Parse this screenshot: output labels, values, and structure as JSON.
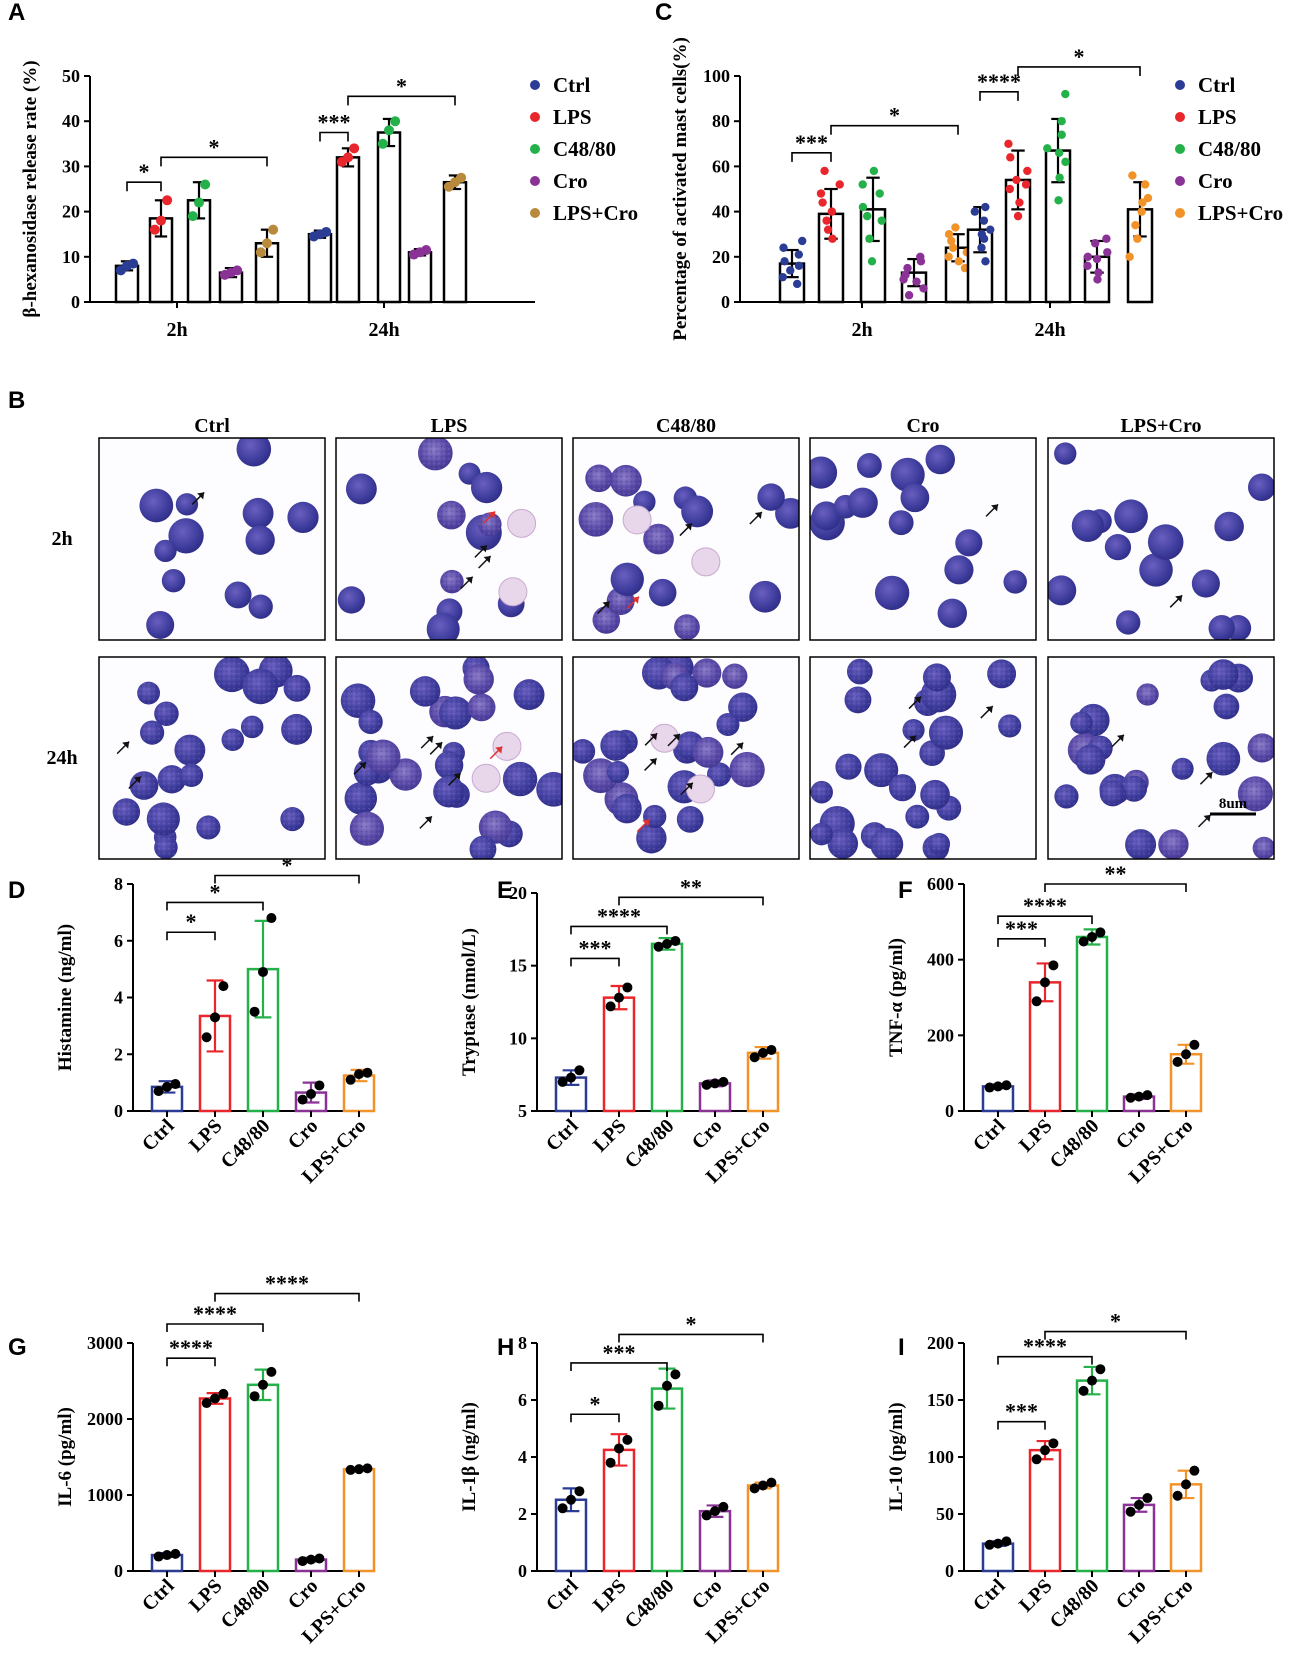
{
  "colors": {
    "Ctrl": "#2b3c95",
    "LPS": "#e8262b",
    "C48/80": "#24b14a",
    "Cro": "#8a3296",
    "LPS+Cro": "#f2932a",
    "LPS+Cro_dot_A": "#b98a3b",
    "black": "#000000",
    "stain_dark": "#3b3d9e",
    "stain_light": "#5b4fb0",
    "stain_bg": "#fdfcfe",
    "arrow_red": "#e03030"
  },
  "panelB": {
    "letter": "B",
    "groups": [
      "Ctrl",
      "LPS",
      "C48/80",
      "Cro",
      "LPS+Cro"
    ],
    "times": [
      "2h",
      "24h"
    ],
    "scale_label": "8um"
  },
  "chart_data": [
    {
      "id": "A",
      "letter": "A",
      "type": "bar",
      "ylabel": "β-hexanosidase release rate (%)",
      "ylim": [
        0,
        50
      ],
      "yticks": [
        0,
        10,
        20,
        30,
        40,
        50
      ],
      "groups": [
        "2h",
        "24h"
      ],
      "series": [
        {
          "name": "Ctrl",
          "values": [
            8,
            15
          ],
          "sd": [
            1,
            0.8
          ],
          "points": [
            [
              7,
              8,
              8.5
            ],
            [
              14.5,
              15,
              15.5
            ]
          ]
        },
        {
          "name": "LPS",
          "values": [
            18.5,
            32
          ],
          "sd": [
            4,
            2
          ],
          "points": [
            [
              16,
              18,
              22.5
            ],
            [
              31,
              32,
              34
            ]
          ]
        },
        {
          "name": "C48/80",
          "values": [
            22.5,
            37.5
          ],
          "sd": [
            4,
            3
          ],
          "points": [
            [
              19,
              22,
              26
            ],
            [
              35,
              38,
              40
            ]
          ]
        },
        {
          "name": "Cro",
          "values": [
            6.5,
            11
          ],
          "sd": [
            1,
            0.7
          ],
          "points": [
            [
              6,
              6.5,
              7
            ],
            [
              10.5,
              11,
              11.5
            ]
          ]
        },
        {
          "name": "LPS+Cro",
          "values": [
            13,
            26.5
          ],
          "sd": [
            3,
            1.5
          ],
          "points": [
            [
              11,
              13,
              16
            ],
            [
              25.5,
              26.5,
              27.5
            ]
          ]
        }
      ],
      "sig": [
        {
          "g": 0,
          "from": 0,
          "to": 1,
          "label": "*",
          "y": 26.5
        },
        {
          "g": 0,
          "from": 1,
          "to": 4,
          "label": "*",
          "y": 32
        },
        {
          "g": 1,
          "from": 0,
          "to": 1,
          "label": "***",
          "y": 37.5
        },
        {
          "g": 1,
          "from": 1,
          "to": 4,
          "label": "*",
          "y": 45.5
        }
      ],
      "legend": [
        "Ctrl",
        "LPS",
        "C48/80",
        "Cro",
        "LPS+Cro"
      ]
    },
    {
      "id": "C",
      "letter": "C",
      "type": "bar",
      "ylabel": "Percentage of activated mast cells(%)",
      "ylim": [
        0,
        100
      ],
      "yticks": [
        0,
        20,
        40,
        60,
        80,
        100
      ],
      "groups": [
        "2h",
        "24h"
      ],
      "series": [
        {
          "name": "Ctrl",
          "values": [
            17,
            32
          ],
          "sd": [
            6,
            10
          ],
          "points": [
            [
              8,
              11,
              14,
              16,
              18,
              21,
              24,
              27
            ],
            [
              18,
              24,
              28,
              32,
              36,
              40,
              42,
              30
            ]
          ]
        },
        {
          "name": "LPS",
          "values": [
            39,
            54
          ],
          "sd": [
            11,
            13
          ],
          "points": [
            [
              28,
              32,
              36,
              40,
              44,
              48,
              52,
              58
            ],
            [
              38,
              44,
              50,
              54,
              58,
              64,
              70,
              52
            ]
          ]
        },
        {
          "name": "C48/80",
          "values": [
            41,
            67
          ],
          "sd": [
            14,
            14
          ],
          "points": [
            [
              18,
              28,
              36,
              42,
              48,
              52,
              58,
              38
            ],
            [
              45,
              55,
              62,
              68,
              74,
              80,
              92,
              66
            ]
          ]
        },
        {
          "name": "Cro",
          "values": [
            13,
            20
          ],
          "sd": [
            6,
            7
          ],
          "points": [
            [
              3,
              6,
              9,
              12,
              15,
              18,
              20,
              10
            ],
            [
              10,
              13,
              16,
              19,
              22,
              26,
              28,
              20
            ]
          ]
        },
        {
          "name": "LPS+Cro",
          "values": [
            24,
            41
          ],
          "sd": [
            6,
            12
          ],
          "points": [
            [
              15,
              18,
              22,
              24,
              27,
              30,
              33,
              20
            ],
            [
              20,
              28,
              34,
              40,
              46,
              52,
              56,
              44
            ]
          ]
        }
      ],
      "sig": [
        {
          "g": 0,
          "from": 0,
          "to": 1,
          "label": "***",
          "y": 66
        },
        {
          "g": 0,
          "from": 1,
          "to": 4,
          "label": "*",
          "y": 78
        },
        {
          "g": 1,
          "from": 0,
          "to": 1,
          "label": "****",
          "y": 93
        },
        {
          "g": 1,
          "from": 1,
          "to": 4,
          "label": "*",
          "y": 104
        }
      ],
      "legend": [
        "Ctrl",
        "LPS",
        "C48/80",
        "Cro",
        "LPS+Cro"
      ]
    },
    {
      "id": "D",
      "letter": "D",
      "type": "bar",
      "ylabel": "Histamine (ng/ml)",
      "ylim": [
        0,
        8
      ],
      "yticks": [
        0,
        2,
        4,
        6,
        8
      ],
      "categories": [
        "Ctrl",
        "LPS",
        "C48/80",
        "Cro",
        "LPS+Cro"
      ],
      "values": [
        0.85,
        3.35,
        5.0,
        0.65,
        1.25
      ],
      "sd": [
        0.2,
        1.25,
        1.7,
        0.35,
        0.2
      ],
      "points": [
        [
          0.7,
          0.85,
          0.95
        ],
        [
          2.6,
          3.3,
          4.4
        ],
        [
          3.5,
          4.9,
          6.8
        ],
        [
          0.4,
          0.6,
          0.9
        ],
        [
          1.1,
          1.3,
          1.35
        ]
      ],
      "sig": [
        {
          "from": 0,
          "to": 1,
          "label": "*",
          "y": 6.3
        },
        {
          "from": 0,
          "to": 2,
          "label": "*",
          "y": 7.35
        },
        {
          "from": 1,
          "to": 4,
          "label": "*",
          "y": 8.3
        }
      ]
    },
    {
      "id": "E",
      "letter": "E",
      "type": "bar",
      "ylabel": "Tryptase (nmol/L)",
      "ylim": [
        5,
        20
      ],
      "yticks": [
        5,
        10,
        15,
        20
      ],
      "categories": [
        "Ctrl",
        "LPS",
        "C48/80",
        "Cro",
        "LPS+Cro"
      ],
      "values": [
        7.3,
        12.8,
        16.5,
        6.9,
        9.0
      ],
      "sd": [
        0.5,
        0.8,
        0.4,
        0.2,
        0.4
      ],
      "points": [
        [
          7.0,
          7.3,
          7.8
        ],
        [
          12.2,
          12.8,
          13.5
        ],
        [
          16.3,
          16.5,
          16.7
        ],
        [
          6.8,
          6.9,
          7.0
        ],
        [
          8.7,
          9.0,
          9.2
        ]
      ],
      "sig": [
        {
          "from": 0,
          "to": 1,
          "label": "***",
          "y": 15.5
        },
        {
          "from": 0,
          "to": 2,
          "label": "****",
          "y": 17.7
        },
        {
          "from": 1,
          "to": 4,
          "label": "**",
          "y": 19.7
        }
      ]
    },
    {
      "id": "F",
      "letter": "F",
      "type": "bar",
      "ylabel": "TNF-α (pg/ml)",
      "ylim": [
        0,
        600
      ],
      "yticks": [
        0,
        200,
        400,
        600
      ],
      "categories": [
        "Ctrl",
        "LPS",
        "C48/80",
        "Cro",
        "LPS+Cro"
      ],
      "values": [
        65,
        340,
        460,
        38,
        150
      ],
      "sd": [
        5,
        50,
        20,
        6,
        25
      ],
      "points": [
        [
          62,
          65,
          68
        ],
        [
          290,
          340,
          385
        ],
        [
          448,
          460,
          472
        ],
        [
          35,
          38,
          42
        ],
        [
          130,
          150,
          175
        ]
      ],
      "sig": [
        {
          "from": 0,
          "to": 1,
          "label": "***",
          "y": 455
        },
        {
          "from": 0,
          "to": 2,
          "label": "****",
          "y": 515
        },
        {
          "from": 1,
          "to": 4,
          "label": "**",
          "y": 600
        }
      ]
    },
    {
      "id": "G",
      "letter": "G",
      "type": "bar",
      "ylabel": "IL-6 (pg/ml)",
      "ylim": [
        0,
        3000
      ],
      "yticks": [
        0,
        1000,
        2000,
        3000
      ],
      "categories": [
        "Ctrl",
        "LPS",
        "C48/80",
        "Cro",
        "LPS+Cro"
      ],
      "values": [
        210,
        2270,
        2450,
        150,
        1340
      ],
      "sd": [
        25,
        70,
        200,
        25,
        15
      ],
      "points": [
        [
          190,
          210,
          225
        ],
        [
          2210,
          2270,
          2330
        ],
        [
          2300,
          2450,
          2620
        ],
        [
          130,
          150,
          165
        ],
        [
          1330,
          1340,
          1350
        ]
      ],
      "sig": [
        {
          "from": 0,
          "to": 1,
          "label": "****",
          "y": 2800
        },
        {
          "from": 0,
          "to": 2,
          "label": "****",
          "y": 3250
        },
        {
          "from": 1,
          "to": 4,
          "label": "****",
          "y": 3650
        }
      ]
    },
    {
      "id": "H",
      "letter": "H",
      "type": "bar",
      "ylabel": "IL-1β (ng/ml)",
      "ylim": [
        0,
        8
      ],
      "yticks": [
        0,
        2,
        4,
        6,
        8
      ],
      "categories": [
        "Ctrl",
        "LPS",
        "C48/80",
        "Cro",
        "LPS+Cro"
      ],
      "values": [
        2.5,
        4.25,
        6.4,
        2.1,
        3.0
      ],
      "sd": [
        0.4,
        0.55,
        0.7,
        0.2,
        0.1
      ],
      "points": [
        [
          2.2,
          2.5,
          2.8
        ],
        [
          3.8,
          4.3,
          4.6
        ],
        [
          5.8,
          6.5,
          6.9
        ],
        [
          1.95,
          2.1,
          2.25
        ],
        [
          2.9,
          3.0,
          3.1
        ]
      ],
      "sig": [
        {
          "from": 0,
          "to": 1,
          "label": "*",
          "y": 5.5
        },
        {
          "from": 0,
          "to": 2,
          "label": "***",
          "y": 7.3
        },
        {
          "from": 1,
          "to": 4,
          "label": "*",
          "y": 8.3
        }
      ]
    },
    {
      "id": "I",
      "letter": "I",
      "type": "bar",
      "ylabel": "IL-10 (pg/ml)",
      "ylim": [
        0,
        200
      ],
      "yticks": [
        0,
        50,
        100,
        150,
        200
      ],
      "categories": [
        "Ctrl",
        "LPS",
        "C48/80",
        "Cro",
        "LPS+Cro"
      ],
      "values": [
        24,
        106,
        167,
        58,
        76
      ],
      "sd": [
        2,
        8,
        12,
        6,
        12
      ],
      "points": [
        [
          23,
          24,
          26
        ],
        [
          98,
          106,
          112
        ],
        [
          158,
          167,
          177
        ],
        [
          52,
          58,
          64
        ],
        [
          66,
          76,
          88
        ]
      ],
      "sig": [
        {
          "from": 0,
          "to": 1,
          "label": "***",
          "y": 131
        },
        {
          "from": 0,
          "to": 2,
          "label": "****",
          "y": 188
        },
        {
          "from": 1,
          "to": 4,
          "label": "*",
          "y": 210
        }
      ]
    }
  ]
}
